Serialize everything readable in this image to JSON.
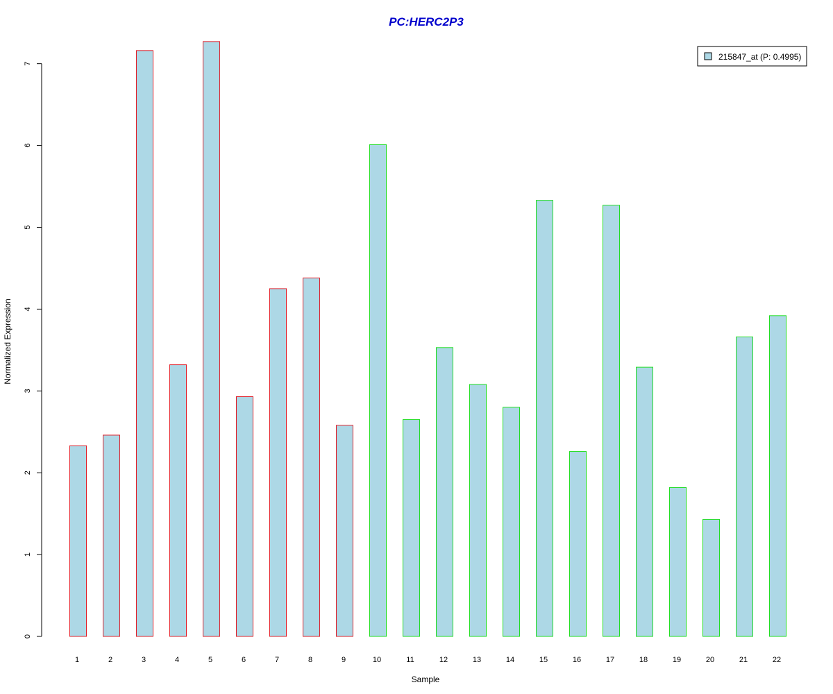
{
  "chart_data": {
    "type": "bar",
    "title": "PC:HERC2P3",
    "xlabel": "Sample",
    "ylabel": "Normalized Expression",
    "ylim": [
      0,
      7.3
    ],
    "yticks": [
      0,
      1,
      2,
      3,
      4,
      5,
      6,
      7
    ],
    "grid": false,
    "legend_position": "top-right",
    "categories": [
      "1",
      "2",
      "3",
      "4",
      "5",
      "6",
      "7",
      "8",
      "9",
      "10",
      "11",
      "12",
      "13",
      "14",
      "15",
      "16",
      "17",
      "18",
      "19",
      "20",
      "21",
      "22"
    ],
    "series": [
      {
        "name": "215847_at (P: 0.4995)",
        "values": [
          2.33,
          2.46,
          7.16,
          3.32,
          7.27,
          2.93,
          4.25,
          4.38,
          2.58,
          6.01,
          2.65,
          3.53,
          3.08,
          2.8,
          5.33,
          2.26,
          5.27,
          3.29,
          1.82,
          1.43,
          3.66,
          3.92
        ],
        "fill": "#add8e6",
        "groups": [
          "red",
          "red",
          "red",
          "red",
          "red",
          "red",
          "red",
          "red",
          "red",
          "green",
          "green",
          "green",
          "green",
          "green",
          "green",
          "green",
          "green",
          "green",
          "green",
          "green",
          "green",
          "green"
        ]
      }
    ],
    "colors": {
      "title": "#0000cc",
      "fill": "#add8e6",
      "red": "#e0202a",
      "green": "#22dd22"
    }
  }
}
